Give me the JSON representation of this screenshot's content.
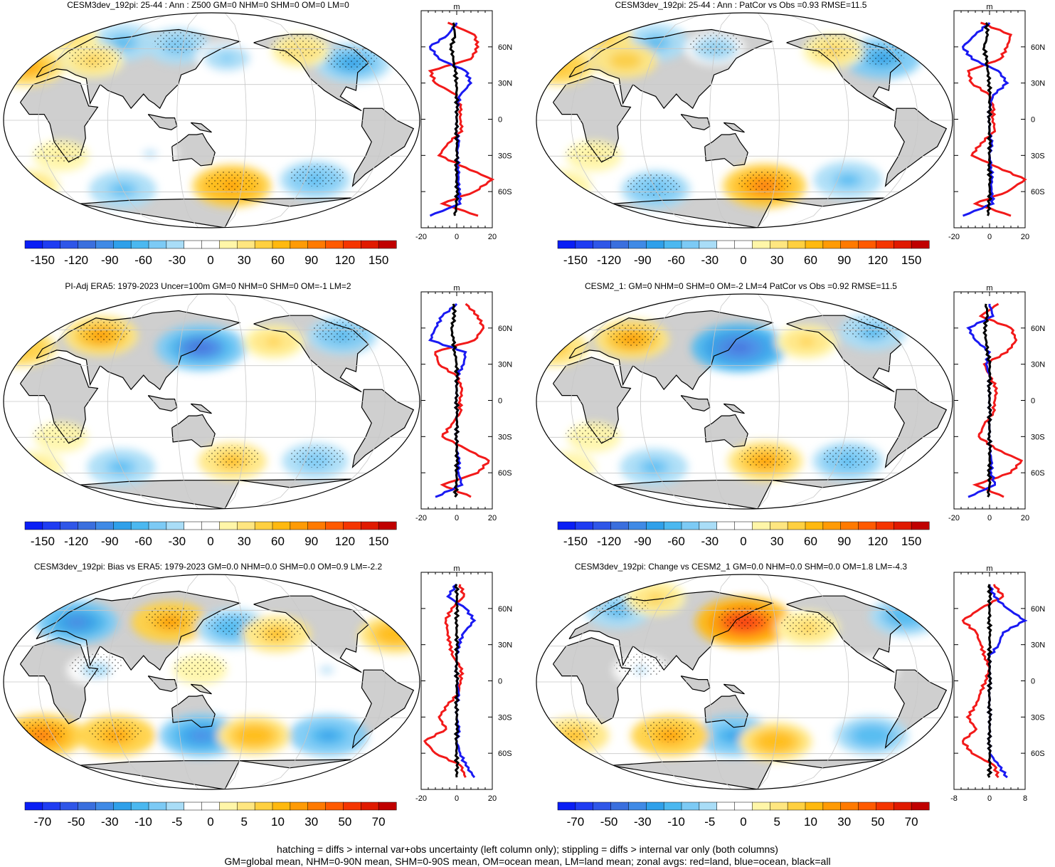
{
  "colors": {
    "land": "#cfcfcf",
    "ocean_line": "#ffffff",
    "red_line": "#f21a1a",
    "blue_line": "#1a1af2",
    "black_line": "#000000",
    "palette": [
      "#0a1ef5",
      "#1f3cf2",
      "#2f56e8",
      "#3a6fde",
      "#3f8ae6",
      "#2fa0ea",
      "#4bb8f0",
      "#7ccaf5",
      "#a9ddf7",
      "#ffffff",
      "#ffffff",
      "#fff6a8",
      "#ffe680",
      "#ffd040",
      "#ffb90f",
      "#ff9b05",
      "#ff7a00",
      "#ff5a00",
      "#f53500",
      "#e01a00",
      "#c00000"
    ]
  },
  "panels": [
    {
      "title": "CESM3dev_192pi: 25-44 : Ann : Z500 GM=0 NHM=0 SHM=0 OM=0 LM=0",
      "colorbar_labels": [
        "-150",
        "-120",
        "-90",
        "-60",
        "-30",
        "0",
        "30",
        "60",
        "90",
        "120",
        "150"
      ],
      "zonal_unit": "m",
      "zonal_xticks": [
        "-20",
        "0",
        "20"
      ],
      "lat_labels": [
        "60N",
        "30N",
        "0",
        "30S",
        "60S"
      ]
    },
    {
      "title": "CESM3dev_192pi: 25-44 : Ann : PatCor vs Obs =0.93 RMSE=11.5",
      "colorbar_labels": [
        "-150",
        "-120",
        "-90",
        "-60",
        "-30",
        "0",
        "30",
        "60",
        "90",
        "120",
        "150"
      ],
      "zonal_unit": "m",
      "zonal_xticks": [
        "-20",
        "0",
        "20"
      ],
      "lat_labels": [
        "60N",
        "30N",
        "0",
        "30S",
        "60S"
      ]
    },
    {
      "title": "PI-Adj ERA5: 1979-2023 Uncer=100m GM=0 NHM=0 SHM=0 OM=-1 LM=2",
      "colorbar_labels": [
        "-150",
        "-120",
        "-90",
        "-60",
        "-30",
        "0",
        "30",
        "60",
        "90",
        "120",
        "150"
      ],
      "zonal_unit": "m",
      "zonal_xticks": [
        "-20",
        "0",
        "20"
      ],
      "lat_labels": [
        "60N",
        "30N",
        "0",
        "30S",
        "60S"
      ]
    },
    {
      "title": "CESM2_1: GM=0 NHM=0 SHM=0 OM=-2 LM=4 PatCor vs Obs =0.92 RMSE=11.5",
      "colorbar_labels": [
        "-150",
        "-120",
        "-90",
        "-60",
        "-30",
        "0",
        "30",
        "60",
        "90",
        "120",
        "150"
      ],
      "zonal_unit": "m",
      "zonal_xticks": [
        "-20",
        "0",
        "20"
      ],
      "lat_labels": [
        "60N",
        "30N",
        "0",
        "30S",
        "60S"
      ]
    },
    {
      "title": "CESM3dev_192pi: Bias vs ERA5: 1979-2023 GM=0.0 NHM=0.0 SHM=0.0 OM=0.9 LM=-2.2",
      "colorbar_labels": [
        "-70",
        "-50",
        "-30",
        "-10",
        "-5",
        "0",
        "5",
        "10",
        "30",
        "50",
        "70"
      ],
      "zonal_unit": "m",
      "zonal_xticks": [
        "-20",
        "0",
        "20"
      ],
      "lat_labels": [
        "60N",
        "30N",
        "0",
        "30S",
        "60S"
      ]
    },
    {
      "title": "CESM3dev_192pi: Change vs CESM2_1 GM=0.0 NHM=0.0 SHM=0.0 OM=1.8 LM=-4.3",
      "colorbar_labels": [
        "-70",
        "-50",
        "-30",
        "-10",
        "-5",
        "0",
        "5",
        "10",
        "30",
        "50",
        "70"
      ],
      "zonal_unit": "m",
      "zonal_xticks": [
        "-8",
        "0",
        "8"
      ],
      "lat_labels": [
        "60N",
        "30N",
        "0",
        "30S",
        "60S"
      ]
    }
  ],
  "footer": {
    "line1": "hatching = diffs > internal var+obs uncertainty (left column only); stippling = diffs > internal var only (both columns)",
    "line2": "GM=global mean, NHM=0-90N mean, SHM=0-90S mean, OM=ocean mean, LM=land mean; zonal avgs: red=land, blue=ocean, black=all"
  },
  "chart_data": {
    "type": "heatmap",
    "description_of_layout": "6 panels (3 rows x 2 columns) of global Z500 maps with zonal-mean side plots",
    "panels": [
      {
        "field": "Z500 model",
        "value_range": [
          -150,
          150
        ],
        "blobs": [
          {
            "lon": 170,
            "lat": -55,
            "value": 80
          },
          {
            "lon": -25,
            "lat": 45,
            "value": 70
          },
          {
            "lon": -75,
            "lat": 48,
            "value": -70
          },
          {
            "lon": 55,
            "lat": 65,
            "value": -55
          },
          {
            "lon": 115,
            "lat": 62,
            "value": -50
          },
          {
            "lon": 165,
            "lat": 52,
            "value": -40
          },
          {
            "lon": 35,
            "lat": 50,
            "value": 40
          },
          {
            "lon": 60,
            "lat": -58,
            "value": -55
          },
          {
            "lon": -110,
            "lat": -50,
            "value": -60
          },
          {
            "lon": 95,
            "lat": -28,
            "value": -25
          },
          {
            "lon": 15,
            "lat": -30,
            "value": 25
          },
          {
            "lon": -30,
            "lat": -55,
            "value": 35
          },
          {
            "lon": -120,
            "lat": 58,
            "value": 35
          },
          {
            "lon": -10,
            "lat": 70,
            "value": 40
          }
        ],
        "zonal_mean": {
          "lat": [
            80,
            70,
            60,
            50,
            40,
            30,
            20,
            10,
            0,
            -10,
            -20,
            -30,
            -40,
            -50,
            -60,
            -70,
            -80
          ],
          "land": [
            -5,
            10,
            12,
            8,
            -15,
            -12,
            0,
            2,
            2,
            3,
            -5,
            -10,
            5,
            20,
            10,
            -8,
            12
          ],
          "ocean": [
            0,
            -5,
            -15,
            -10,
            5,
            8,
            2,
            0,
            0,
            0,
            1,
            0,
            1,
            1,
            1,
            2,
            -15
          ],
          "all": [
            -2,
            -1,
            -3,
            -2,
            -1,
            0,
            0,
            0,
            0,
            0,
            0,
            0,
            0,
            0,
            0,
            0,
            -1
          ]
        }
      },
      {
        "field": "Z500 model",
        "value_range": [
          -150,
          150
        ],
        "blobs": [
          {
            "lon": 170,
            "lat": -55,
            "value": 90
          },
          {
            "lon": -25,
            "lat": 45,
            "value": 60
          },
          {
            "lon": -75,
            "lat": 52,
            "value": -75
          },
          {
            "lon": 55,
            "lat": 65,
            "value": -55
          },
          {
            "lon": 120,
            "lat": 60,
            "value": -40
          },
          {
            "lon": 35,
            "lat": 50,
            "value": 45
          },
          {
            "lon": 60,
            "lat": -58,
            "value": -60
          },
          {
            "lon": -110,
            "lat": -50,
            "value": -55
          },
          {
            "lon": 15,
            "lat": -30,
            "value": 25
          },
          {
            "lon": -30,
            "lat": -55,
            "value": 30
          },
          {
            "lon": -120,
            "lat": 58,
            "value": 40
          },
          {
            "lon": -10,
            "lat": 70,
            "value": 45
          }
        ],
        "zonal_mean": {
          "lat": [
            80,
            70,
            60,
            50,
            40,
            30,
            20,
            10,
            0,
            -10,
            -20,
            -30,
            -40,
            -50,
            -60,
            -70,
            -80
          ],
          "land": [
            -5,
            12,
            10,
            6,
            -12,
            -10,
            0,
            2,
            2,
            3,
            -5,
            -10,
            5,
            20,
            10,
            -8,
            12
          ],
          "ocean": [
            0,
            -8,
            -15,
            -10,
            5,
            10,
            2,
            0,
            0,
            0,
            1,
            0,
            1,
            1,
            1,
            2,
            -15
          ],
          "all": [
            -2,
            -1,
            -3,
            -2,
            -1,
            0,
            0,
            0,
            0,
            0,
            0,
            0,
            0,
            0,
            0,
            0,
            -1
          ]
        }
      },
      {
        "field": "Z500 observations",
        "value_range": [
          -150,
          150
        ],
        "blobs": [
          {
            "lon": 170,
            "lat": -50,
            "value": 55
          },
          {
            "lon": -30,
            "lat": 45,
            "value": 60
          },
          {
            "lon": -80,
            "lat": 55,
            "value": -60
          },
          {
            "lon": 140,
            "lat": 45,
            "value": -100
          },
          {
            "lon": 40,
            "lat": 55,
            "value": 70
          },
          {
            "lon": 60,
            "lat": -55,
            "value": -55
          },
          {
            "lon": -110,
            "lat": -50,
            "value": -50
          },
          {
            "lon": -150,
            "lat": 50,
            "value": 40
          },
          {
            "lon": 15,
            "lat": -30,
            "value": 20
          },
          {
            "lon": -25,
            "lat": -55,
            "value": 30
          }
        ],
        "zonal_mean": {
          "lat": [
            80,
            70,
            60,
            50,
            40,
            30,
            20,
            10,
            0,
            -10,
            -20,
            -30,
            -40,
            -50,
            -60,
            -70,
            -80
          ],
          "land": [
            5,
            12,
            15,
            10,
            -12,
            -10,
            0,
            3,
            2,
            2,
            -3,
            -8,
            5,
            18,
            12,
            -8,
            8
          ],
          "ocean": [
            0,
            -8,
            -12,
            -15,
            5,
            4,
            0,
            0,
            0,
            0,
            0,
            0,
            0,
            1,
            1,
            3,
            -12
          ],
          "all": [
            -2,
            -1,
            -3,
            -2,
            -1,
            0,
            0,
            0,
            0,
            0,
            0,
            0,
            0,
            0,
            0,
            0,
            -1
          ]
        }
      },
      {
        "field": "Z500 CESM2_1",
        "value_range": [
          -150,
          150
        ],
        "blobs": [
          {
            "lon": 170,
            "lat": -50,
            "value": 70
          },
          {
            "lon": -30,
            "lat": 45,
            "value": 55
          },
          {
            "lon": -80,
            "lat": 58,
            "value": -55
          },
          {
            "lon": 145,
            "lat": 45,
            "value": -110
          },
          {
            "lon": 40,
            "lat": 52,
            "value": 70
          },
          {
            "lon": 60,
            "lat": -55,
            "value": -55
          },
          {
            "lon": -110,
            "lat": -50,
            "value": -60
          },
          {
            "lon": -150,
            "lat": 50,
            "value": 40
          },
          {
            "lon": 15,
            "lat": -30,
            "value": 20
          },
          {
            "lon": -25,
            "lat": -55,
            "value": 25
          }
        ],
        "zonal_mean": {
          "lat": [
            80,
            70,
            60,
            50,
            40,
            30,
            20,
            10,
            0,
            -10,
            -20,
            -30,
            -40,
            -50,
            -60,
            -70,
            -80
          ],
          "land": [
            5,
            -5,
            12,
            15,
            10,
            -3,
            0,
            4,
            3,
            2,
            -3,
            -6,
            3,
            18,
            12,
            -8,
            8
          ],
          "ocean": [
            0,
            2,
            -12,
            -8,
            0,
            -2,
            0,
            0,
            0,
            0,
            0,
            0,
            0,
            1,
            1,
            3,
            -12
          ],
          "all": [
            -2,
            -1,
            -3,
            -2,
            -1,
            0,
            0,
            0,
            0,
            0,
            0,
            0,
            0,
            0,
            0,
            0,
            -1
          ]
        }
      },
      {
        "field": "Bias",
        "value_range": [
          -70,
          70
        ],
        "blobs": [
          {
            "lon": 110,
            "lat": 50,
            "value": 35
          },
          {
            "lon": -40,
            "lat": 40,
            "value": 30
          },
          {
            "lon": 170,
            "lat": 45,
            "value": -30
          },
          {
            "lon": 20,
            "lat": 50,
            "value": -40
          },
          {
            "lon": -150,
            "lat": 40,
            "value": 25
          },
          {
            "lon": 140,
            "lat": -45,
            "value": -40
          },
          {
            "lon": 60,
            "lat": -45,
            "value": 35
          },
          {
            "lon": -100,
            "lat": -45,
            "value": -35
          },
          {
            "lon": -10,
            "lat": -45,
            "value": 40
          },
          {
            "lon": -170,
            "lat": -45,
            "value": 30
          },
          {
            "lon": 50,
            "lat": 10,
            "value": -15
          },
          {
            "lon": -110,
            "lat": 10,
            "value": -12
          },
          {
            "lon": 140,
            "lat": 10,
            "value": 10
          }
        ],
        "zonal_mean": {
          "lat": [
            80,
            70,
            60,
            50,
            40,
            30,
            20,
            10,
            0,
            -10,
            -20,
            -30,
            -40,
            -50,
            -60,
            -70,
            -80
          ],
          "land": [
            2,
            4,
            -3,
            -6,
            -5,
            -4,
            -2,
            3,
            2,
            1,
            -5,
            -10,
            -6,
            -18,
            -12,
            2,
            5
          ],
          "ocean": [
            0,
            -5,
            5,
            10,
            4,
            1,
            0,
            0,
            0,
            1,
            0,
            0,
            1,
            0,
            2,
            5,
            10
          ],
          "all": [
            0,
            0,
            0,
            0,
            0,
            0,
            0,
            0,
            0,
            0,
            0,
            0,
            0,
            0,
            0,
            0,
            0
          ]
        }
      },
      {
        "field": "Change",
        "value_range": [
          -70,
          70
        ],
        "blobs": [
          {
            "lon": 150,
            "lat": 50,
            "value": 55
          },
          {
            "lon": -50,
            "lat": 55,
            "value": -30
          },
          {
            "lon": 20,
            "lat": 60,
            "value": -25
          },
          {
            "lon": 50,
            "lat": 70,
            "value": 20
          },
          {
            "lon": -150,
            "lat": 45,
            "value": 20
          },
          {
            "lon": 140,
            "lat": -45,
            "value": -35
          },
          {
            "lon": 80,
            "lat": -45,
            "value": 35
          },
          {
            "lon": -90,
            "lat": -45,
            "value": -30
          },
          {
            "lon": -10,
            "lat": -45,
            "value": 25
          },
          {
            "lon": 180,
            "lat": -50,
            "value": 30
          },
          {
            "lon": 60,
            "lat": 10,
            "value": -12
          },
          {
            "lon": -100,
            "lat": 10,
            "value": -10
          }
        ],
        "zonal_mean": {
          "lat": [
            80,
            70,
            60,
            50,
            40,
            30,
            20,
            10,
            0,
            -10,
            -20,
            -30,
            -40,
            -50,
            -60,
            -70,
            -80
          ],
          "land": [
            1,
            3,
            -2,
            -6,
            -3,
            -2,
            -1,
            0,
            -1,
            -2,
            -3,
            -5,
            -3,
            -6,
            -4,
            1,
            2
          ],
          "ocean": [
            0,
            1,
            4,
            8,
            3,
            2,
            0,
            0,
            0,
            0,
            0,
            0,
            0,
            0,
            0,
            2,
            4
          ],
          "all": [
            0,
            0,
            0,
            0,
            0,
            0,
            0,
            0,
            0,
            0,
            0,
            0,
            0,
            0,
            0,
            0,
            0
          ]
        }
      }
    ]
  }
}
